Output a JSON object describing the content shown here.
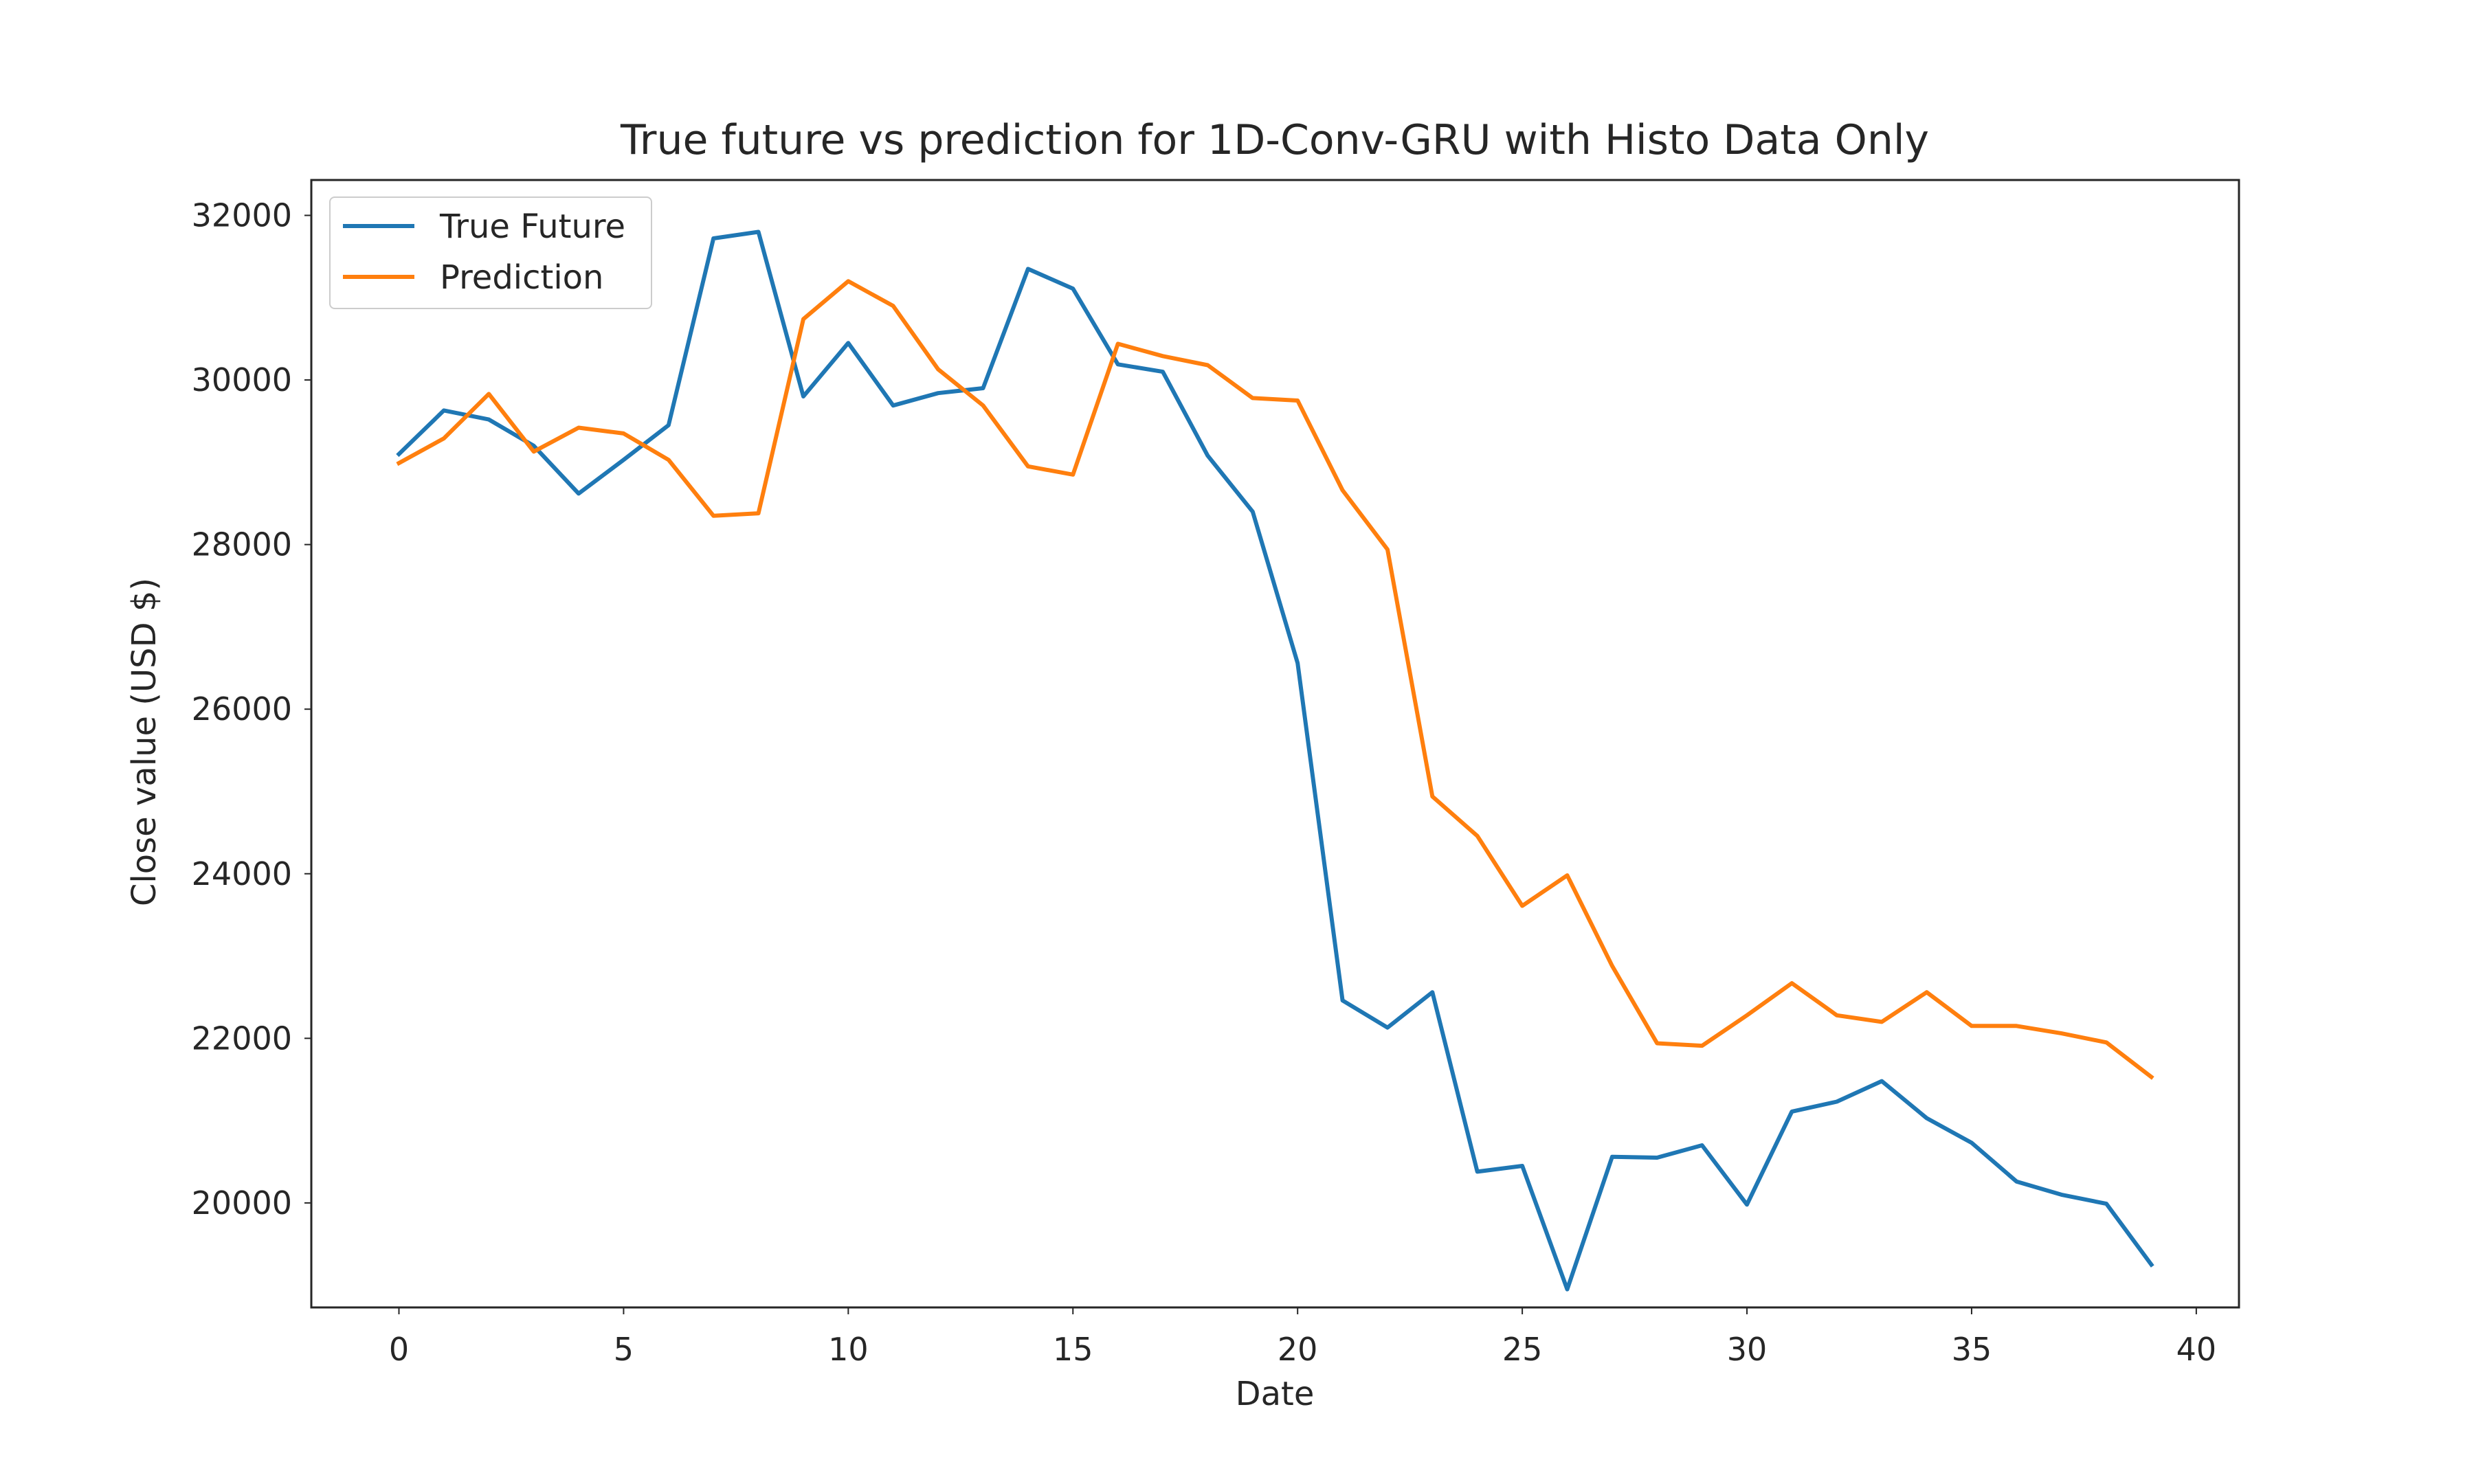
{
  "chart_data": {
    "type": "line",
    "title": "True future vs prediction for 1D-Conv-GRU with Histo Data Only",
    "xlabel": "Date",
    "ylabel": "Close value (USD $)",
    "xlim": [
      -1.95,
      40.95
    ],
    "ylim": [
      18730,
      32430
    ],
    "xticks": [
      0,
      5,
      10,
      15,
      20,
      25,
      30,
      35,
      40
    ],
    "yticks": [
      20000,
      22000,
      24000,
      26000,
      28000,
      30000,
      32000
    ],
    "x": [
      0,
      1,
      2,
      3,
      4,
      5,
      6,
      7,
      8,
      9,
      10,
      11,
      12,
      13,
      14,
      15,
      16,
      17,
      18,
      19,
      20,
      21,
      22,
      23,
      24,
      25,
      26,
      27,
      28,
      29,
      30,
      31,
      32,
      33,
      34,
      35,
      36,
      37,
      38,
      39
    ],
    "grid": false,
    "legend_position": "upper-left",
    "series": [
      {
        "name": "True Future",
        "color": "#1f77b4",
        "values": [
          29100,
          29630,
          29520,
          29200,
          28620,
          29030,
          29450,
          31720,
          31800,
          29800,
          30450,
          29690,
          29840,
          29900,
          31350,
          31110,
          30190,
          30100,
          29080,
          28400,
          26560,
          22460,
          22130,
          22560,
          20380,
          20450,
          18950,
          20560,
          20550,
          20700,
          19980,
          21110,
          21230,
          21480,
          21030,
          20730,
          20260,
          20100,
          19990,
          19250
        ]
      },
      {
        "name": "Prediction",
        "color": "#ff7f0e",
        "values": [
          28990,
          29290,
          29830,
          29130,
          29420,
          29350,
          29030,
          28350,
          28380,
          30740,
          31200,
          30900,
          30130,
          29690,
          28950,
          28850,
          30440,
          30290,
          30180,
          29780,
          29750,
          28660,
          27940,
          24940,
          24460,
          23610,
          23980,
          22880,
          21940,
          21910,
          22280,
          22670,
          22280,
          22200,
          22560,
          22150,
          22150,
          22060,
          21950,
          21530
        ]
      }
    ]
  }
}
